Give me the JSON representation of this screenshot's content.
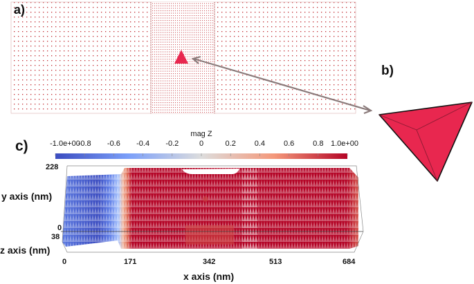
{
  "panels": {
    "a": {
      "label": "a)"
    },
    "b": {
      "label": "b)"
    },
    "c": {
      "label": "c)"
    }
  },
  "colorbar": {
    "title": "mag Z",
    "ticks": [
      "-1.0e+00",
      "-0.8",
      "-0.6",
      "-0.4",
      "-0.2",
      "0",
      "0.2",
      "0.4",
      "0.6",
      "0.8",
      "1.0e+00"
    ],
    "colormap": [
      "#3b4cc0",
      "#dddddd",
      "#b40426"
    ]
  },
  "axes": {
    "x_label": "x axis (nm)",
    "y_label": "y axis (nm)",
    "z_label": "z axis (nm)",
    "x_ticks": [
      "0",
      "171",
      "342",
      "513",
      "684"
    ],
    "y_ticks": [
      "228",
      "0"
    ],
    "z_ticks": [
      "38"
    ]
  },
  "colors": {
    "dots": "#c0282e",
    "tetrahedron": "#e8274f",
    "arrow": "#8a7a7a"
  }
}
